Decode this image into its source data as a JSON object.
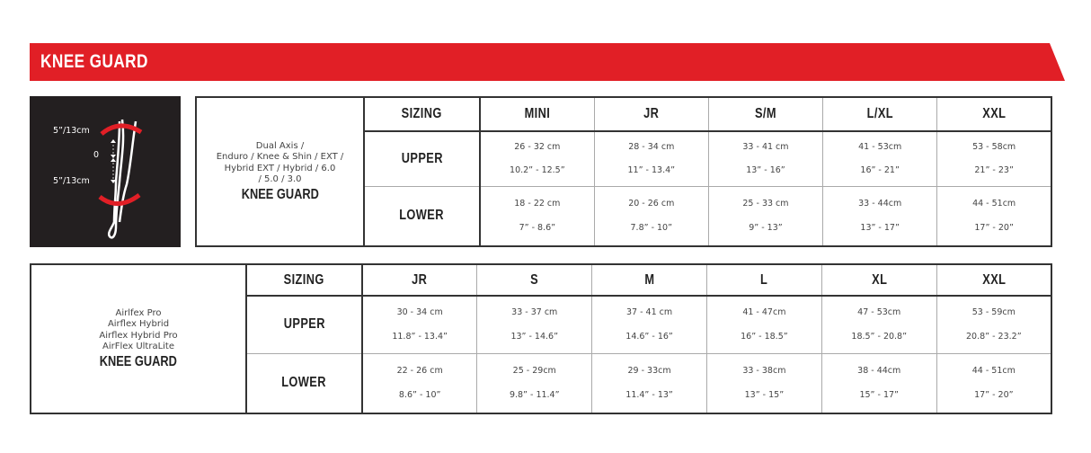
{
  "banner": {
    "title": "KNEE GUARD",
    "color": "#e11f26"
  },
  "diagram": {
    "top_label": "5”/13cm",
    "middle_label": "0",
    "bottom_label": "5”/13cm"
  },
  "table1": {
    "product_lines": [
      "Dual Axis /",
      "Enduro / Knee & Shin / EXT /",
      "Hybrid EXT / Hybrid / 6.0",
      "/ 5.0 / 3.0"
    ],
    "product_title": "KNEE GUARD",
    "sizing_label": "SIZING",
    "sizes": [
      "MINI",
      "JR",
      "S/M",
      "L/XL",
      "XXL"
    ],
    "rows": [
      {
        "label": "UPPER",
        "cm": [
          "26 - 32 cm",
          "28 - 34 cm",
          "33 - 41 cm",
          "41 - 53cm",
          "53 - 58cm"
        ],
        "in": [
          "10.2” - 12.5”",
          "11” - 13.4”",
          "13” - 16”",
          "16” - 21”",
          "21” - 23”"
        ]
      },
      {
        "label": "LOWER",
        "cm": [
          "18 - 22 cm",
          "20 - 26 cm",
          "25 - 33 cm",
          "33 - 44cm",
          "44 - 51cm"
        ],
        "in": [
          "7” - 8.6”",
          "7.8” - 10”",
          "9” - 13”",
          "13” - 17”",
          "17” - 20”"
        ]
      }
    ]
  },
  "table2": {
    "product_lines": [
      "Airlfex Pro",
      "Airflex Hybrid",
      "Airflex Hybrid Pro",
      "AirFlex UltraLite"
    ],
    "product_title": "KNEE GUARD",
    "sizing_label": "SIZING",
    "sizes": [
      "JR",
      "S",
      "M",
      "L",
      "XL",
      "XXL"
    ],
    "rows": [
      {
        "label": "UPPER",
        "cm": [
          "30 - 34 cm",
          "33 - 37 cm",
          "37 - 41 cm",
          "41 - 47cm",
          "47 - 53cm",
          "53 - 59cm"
        ],
        "in": [
          "11.8” - 13.4”",
          "13” - 14.6”",
          "14.6” - 16”",
          "16” - 18.5”",
          "18.5” - 20.8”",
          "20.8” - 23.2”"
        ]
      },
      {
        "label": "LOWER",
        "cm": [
          "22 - 26 cm",
          "25 - 29cm",
          "29 - 33cm",
          "33 - 38cm",
          "38 - 44cm",
          "44 - 51cm"
        ],
        "in": [
          "8.6” - 10”",
          "9.8” - 11.4”",
          "11.4” - 13”",
          "13” - 15”",
          "15” - 17”",
          "17” - 20”"
        ]
      }
    ]
  }
}
